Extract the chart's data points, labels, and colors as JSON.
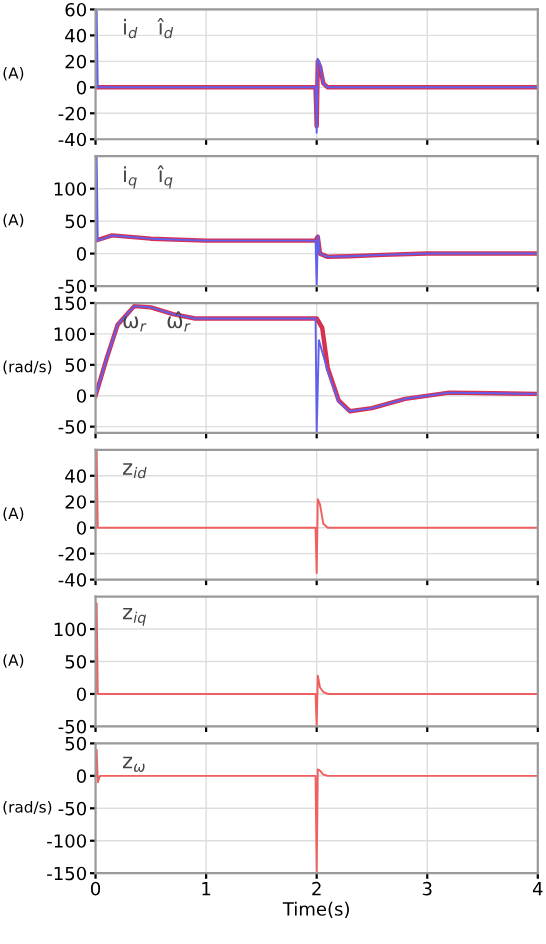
{
  "chart_data": [
    {
      "type": "line",
      "ylabel": "(A)",
      "annotations": [
        "i$_{d}$   î$_{d}$"
      ],
      "xlim": [
        0,
        4
      ],
      "xticks": [
        0,
        1,
        2,
        3,
        4
      ],
      "ylim": [
        -40,
        60
      ],
      "yticks": [
        -40,
        -20,
        0,
        20,
        40,
        60
      ],
      "grid": true,
      "tick_labels": "y",
      "series": [
        {
          "color": "#6060ee",
          "x": [
            0,
            0.01,
            0.02,
            0.05,
            1.99,
            2.0,
            2.01,
            2.03,
            2.06,
            2.1,
            4
          ],
          "values": [
            0,
            60,
            0,
            0,
            0,
            -35,
            22,
            18,
            3,
            0,
            0
          ]
        },
        {
          "color": "#d83050",
          "x": [
            0,
            1.99,
            2.0,
            2.01,
            2.03,
            2.06,
            2.1,
            4
          ],
          "values": [
            0,
            0,
            -30,
            20,
            16,
            3,
            0,
            0
          ]
        }
      ]
    },
    {
      "type": "line",
      "ylabel": "(A)",
      "annotations": [
        "i$_{q}$   î$_{q}$"
      ],
      "xlim": [
        0,
        4
      ],
      "xticks": [
        0,
        1,
        2,
        3,
        4
      ],
      "ylim": [
        -50,
        150
      ],
      "yticks": [
        -50,
        0,
        50,
        100
      ],
      "grid": true,
      "tick_labels": "y",
      "series": [
        {
          "color": "#6060ee",
          "x": [
            0,
            0.01,
            0.02,
            0.15,
            0.5,
            1.0,
            1.99,
            2.0,
            2.01,
            2.03,
            2.1,
            2.3,
            2.6,
            3.0,
            4
          ],
          "values": [
            20,
            150,
            20,
            28,
            23,
            20,
            20,
            -50,
            28,
            0,
            -5,
            -4,
            -2,
            0,
            0
          ]
        },
        {
          "color": "#d83050",
          "x": [
            0,
            0.15,
            0.5,
            1.0,
            1.99,
            2.01,
            2.03,
            2.1,
            2.3,
            2.6,
            3.0,
            4
          ],
          "values": [
            20,
            28,
            23,
            20,
            20,
            26,
            0,
            -5,
            -4,
            -2,
            0,
            0
          ]
        }
      ]
    },
    {
      "type": "line",
      "ylabel": "(rad/s)",
      "annotations": [
        "ω$_{r}$   ω̂$_{r}$"
      ],
      "xlim": [
        0,
        4
      ],
      "xticks": [
        0,
        1,
        2,
        3,
        4
      ],
      "ylim": [
        -60,
        150
      ],
      "yticks": [
        -50,
        0,
        50,
        100,
        150
      ],
      "grid": true,
      "tick_labels": "y",
      "series": [
        {
          "color": "#6060ee",
          "x": [
            0,
            0.1,
            0.2,
            0.35,
            0.5,
            0.7,
            0.9,
            1.5,
            1.99,
            2.0,
            2.02,
            2.1,
            2.2,
            2.3,
            2.5,
            2.8,
            3.2,
            3.6,
            4
          ],
          "values": [
            0,
            60,
            115,
            145,
            143,
            132,
            125,
            125,
            125,
            -60,
            90,
            40,
            -10,
            -25,
            -20,
            -5,
            5,
            4,
            3
          ]
        },
        {
          "color": "#d83050",
          "x": [
            0,
            0.1,
            0.2,
            0.35,
            0.5,
            0.7,
            0.9,
            1.5,
            2.0,
            2.05,
            2.1,
            2.2,
            2.3,
            2.5,
            2.8,
            3.2,
            3.6,
            4
          ],
          "values": [
            0,
            60,
            115,
            145,
            143,
            132,
            125,
            125,
            125,
            110,
            45,
            -8,
            -25,
            -20,
            -5,
            5,
            4,
            3
          ]
        }
      ]
    },
    {
      "type": "line",
      "ylabel": "(A)",
      "annotations": [
        "z$_{id}$"
      ],
      "xlim": [
        0,
        4
      ],
      "xticks": [
        0,
        1,
        2,
        3,
        4
      ],
      "ylim": [
        -40,
        60
      ],
      "yticks": [
        -40,
        -20,
        0,
        20,
        40
      ],
      "grid": true,
      "tick_labels": "y",
      "series": [
        {
          "color": "#f06060",
          "x": [
            0,
            0.01,
            0.02,
            1.99,
            2.0,
            2.01,
            2.03,
            2.06,
            2.1,
            4
          ],
          "values": [
            0,
            60,
            0,
            0,
            -35,
            22,
            18,
            3,
            0,
            0
          ]
        }
      ]
    },
    {
      "type": "line",
      "ylabel": "(A)",
      "annotations": [
        "z$_{iq}$"
      ],
      "xlim": [
        0,
        4
      ],
      "xticks": [
        0,
        1,
        2,
        3,
        4
      ],
      "ylim": [
        -50,
        150
      ],
      "yticks": [
        -50,
        0,
        50,
        100
      ],
      "grid": true,
      "tick_labels": "y",
      "series": [
        {
          "color": "#f06060",
          "x": [
            0,
            0.01,
            0.02,
            1.99,
            2.0,
            2.01,
            2.03,
            2.06,
            2.1,
            4
          ],
          "values": [
            0,
            140,
            0,
            0,
            -50,
            28,
            10,
            3,
            0,
            0
          ]
        }
      ]
    },
    {
      "type": "line",
      "ylabel": "(rad/s)",
      "xlabel": "Time(s)",
      "annotations": [
        "z$_{ω}$"
      ],
      "xlim": [
        0,
        4
      ],
      "xticks": [
        0,
        1,
        2,
        3,
        4
      ],
      "ylim": [
        -150,
        50
      ],
      "yticks": [
        -150,
        -100,
        -50,
        0,
        50
      ],
      "grid": true,
      "series": [
        {
          "color": "#f06060",
          "x": [
            0,
            0.01,
            0.02,
            0.04,
            1.99,
            2.0,
            2.01,
            2.03,
            2.06,
            2.1,
            4
          ],
          "values": [
            0,
            40,
            -10,
            0,
            0,
            -150,
            10,
            8,
            2,
            0,
            0
          ]
        }
      ]
    }
  ]
}
